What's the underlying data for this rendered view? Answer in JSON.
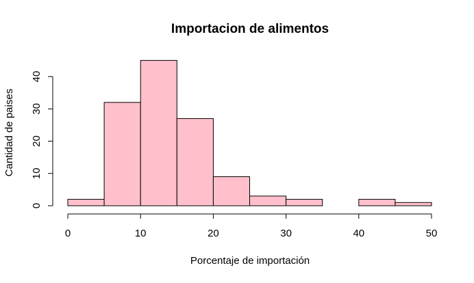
{
  "chart_data": {
    "type": "bar",
    "subtype": "histogram",
    "title": "Importacion de alimentos",
    "xlabel": "Porcentaje de importación",
    "ylabel": "Cantidad de paises",
    "bins": [
      {
        "start": 0,
        "end": 5,
        "count": 2
      },
      {
        "start": 5,
        "end": 10,
        "count": 32
      },
      {
        "start": 10,
        "end": 15,
        "count": 45
      },
      {
        "start": 15,
        "end": 20,
        "count": 27
      },
      {
        "start": 20,
        "end": 25,
        "count": 9
      },
      {
        "start": 25,
        "end": 30,
        "count": 3
      },
      {
        "start": 30,
        "end": 35,
        "count": 2
      },
      {
        "start": 35,
        "end": 40,
        "count": 0
      },
      {
        "start": 40,
        "end": 45,
        "count": 2
      },
      {
        "start": 45,
        "end": 50,
        "count": 1
      }
    ],
    "xlim": [
      0,
      50
    ],
    "ylim": [
      0,
      45
    ],
    "xticks": [
      0,
      10,
      20,
      30,
      40,
      50
    ],
    "yticks": [
      0,
      10,
      20,
      30,
      40
    ],
    "grid": false,
    "legend": "none",
    "colors": {
      "bar_fill": "#FFC0CB",
      "bar_stroke": "#000000",
      "axis": "#000000",
      "background": "#FFFFFF"
    }
  }
}
